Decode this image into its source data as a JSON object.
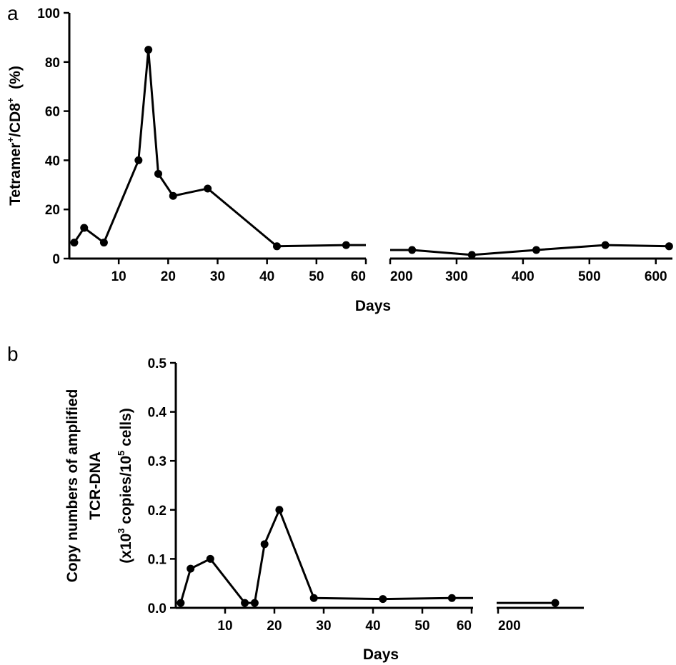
{
  "chart_data": [
    {
      "type": "line",
      "panel_label": "a",
      "xlabel": "Days",
      "ylabel_parts": {
        "a": "Tetramer",
        "sup1": "+",
        "b": "/CD8",
        "sup2": "+",
        "c": "  (%)"
      },
      "ylim": [
        0,
        100
      ],
      "yticks": [
        "0",
        "20",
        "40",
        "60",
        "80",
        "100"
      ],
      "segment1": {
        "xlim": [
          0,
          60
        ],
        "xticks": [
          "10",
          "20",
          "30",
          "40",
          "50",
          "60"
        ]
      },
      "segment2": {
        "xlim": [
          200,
          625
        ],
        "xticks": [
          "200",
          "300",
          "400",
          "500",
          "600"
        ]
      },
      "series": [
        {
          "name": "Tetramer+/CD8+",
          "points_seg1": [
            [
              1,
              6.5
            ],
            [
              3,
              12.5
            ],
            [
              7,
              6.5
            ],
            [
              14,
              40
            ],
            [
              16,
              85
            ],
            [
              18,
              34.5
            ],
            [
              21,
              25.5
            ],
            [
              28,
              28.5
            ],
            [
              42,
              5
            ],
            [
              56,
              5.5
            ]
          ],
          "points_seg2": [
            [
              233,
              3.5
            ],
            [
              323,
              1.5
            ],
            [
              420,
              3.5
            ],
            [
              524,
              5.5
            ],
            [
              620,
              5
            ]
          ]
        }
      ]
    },
    {
      "type": "line",
      "panel_label": "b",
      "xlabel": "Days",
      "ylabel_lines": [
        "Copy numbers of amplified",
        "TCR-DNA"
      ],
      "ylabel_units": {
        "a": "(x10",
        "sup1": "3",
        "b": " copies/10",
        "sup2": "5",
        "c": " cells)"
      },
      "ylim": [
        0,
        0.5
      ],
      "yticks": [
        "0.0",
        "0.1",
        "0.2",
        "0.3",
        "0.4",
        "0.5"
      ],
      "segment1": {
        "xlim": [
          0,
          60
        ],
        "xticks": [
          "10",
          "20",
          "30",
          "40",
          "50",
          "60"
        ]
      },
      "segment2": {
        "xlim": [
          200,
          260
        ],
        "xticks": [
          "200"
        ]
      },
      "series": [
        {
          "name": "TCR-DNA copies",
          "points_seg1": [
            [
              1,
              0.01
            ],
            [
              3,
              0.08
            ],
            [
              7,
              0.1
            ],
            [
              14,
              0.01
            ],
            [
              16,
              0.01
            ],
            [
              18,
              0.13
            ],
            [
              21,
              0.2
            ],
            [
              28,
              0.02
            ],
            [
              42,
              0.018
            ],
            [
              56,
              0.02
            ]
          ],
          "points_seg2": [
            [
              240,
              0.01
            ]
          ]
        }
      ]
    }
  ]
}
